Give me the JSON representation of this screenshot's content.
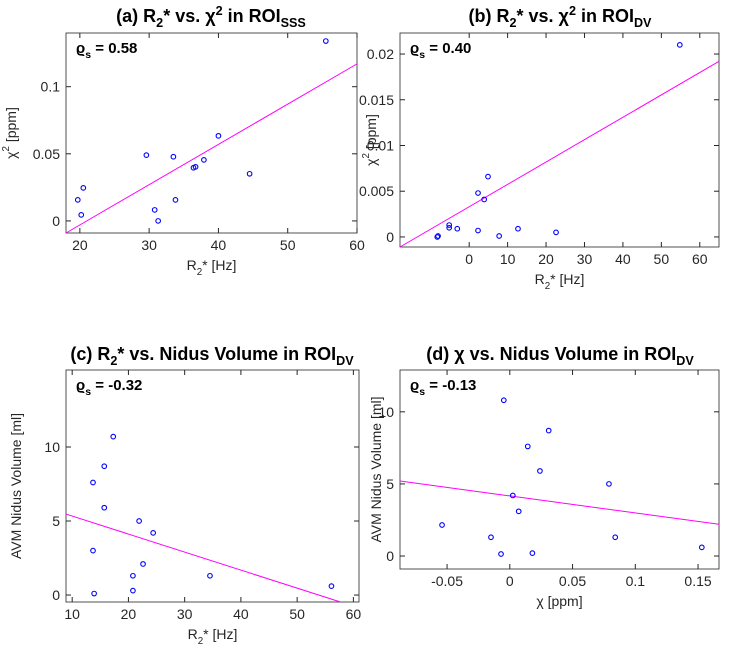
{
  "chart_data": [
    {
      "type": "scatter",
      "title": [
        {
          "text": "(a) R"
        },
        {
          "text": "2",
          "script": "sub"
        },
        {
          "text": "* vs. χ"
        },
        {
          "text": "2",
          "script": "sup"
        },
        {
          "text": " in ROI"
        },
        {
          "text": "SSS",
          "script": "sub"
        }
      ],
      "annotation": [
        {
          "text": "ϱ"
        },
        {
          "text": "s",
          "script": "sub"
        },
        {
          "text": " = 0.58"
        }
      ],
      "xlabel": [
        {
          "text": "R"
        },
        {
          "text": "2",
          "script": "sub"
        },
        {
          "text": "* [Hz]"
        }
      ],
      "ylabel": [
        {
          "text": "χ"
        },
        {
          "text": "2",
          "script": "sup"
        },
        {
          "text": " [ppm]"
        }
      ],
      "x": [
        19.7,
        20.5,
        20.2,
        29.6,
        30.8,
        31.3,
        33.5,
        33.8,
        36.4,
        36.7,
        37.9,
        40.0,
        44.5,
        55.5
      ],
      "values": [
        0.0157,
        0.0246,
        0.0045,
        0.049,
        0.0082,
        0,
        0.0478,
        0.0157,
        0.0396,
        0.0403,
        0.0455,
        0.0634,
        0.0351,
        0.134
      ],
      "color": "#0000ff",
      "fit": {
        "x": [
          18,
          60
        ],
        "y": [
          -0.009,
          0.117
        ],
        "color": "#ff00ff"
      },
      "xlim": [
        18,
        60
      ],
      "ylim": [
        -0.009,
        0.14
      ],
      "xticks": [
        20,
        30,
        40,
        50,
        60
      ],
      "yticks": [
        0,
        0.05,
        0.1
      ]
    },
    {
      "type": "scatter",
      "title": [
        {
          "text": "(b) R"
        },
        {
          "text": "2",
          "script": "sub"
        },
        {
          "text": "* vs. χ"
        },
        {
          "text": "2",
          "script": "sup"
        },
        {
          "text": " in ROI"
        },
        {
          "text": "DV",
          "script": "sub"
        }
      ],
      "annotation": [
        {
          "text": "ϱ"
        },
        {
          "text": "s",
          "script": "sub"
        },
        {
          "text": " = 0.40"
        }
      ],
      "xlabel": [
        {
          "text": "R"
        },
        {
          "text": "2",
          "script": "sub"
        },
        {
          "text": "* [Hz]"
        }
      ],
      "ylabel": [
        {
          "text": "χ"
        },
        {
          "text": "2",
          "script": "sup"
        },
        {
          "text": " [ppm]"
        }
      ],
      "x": [
        -8.3,
        -8.1,
        -5.2,
        -5.2,
        -3.1,
        2.3,
        3.9,
        4.9,
        2.3,
        7.8,
        12.7,
        22.6,
        54.8
      ],
      "values": [
        0,
        0.0001,
        0.0013,
        0.001,
        0.0009,
        0.0048,
        0.0041,
        0.0066,
        0.0007,
        0.0001,
        0.0009,
        0.0005,
        0.021
      ],
      "color": "#0000ff",
      "fit": {
        "x": [
          -18,
          65
        ],
        "y": [
          -0.0011,
          0.0192
        ],
        "color": "#ff00ff"
      },
      "xlim": [
        -18,
        65
      ],
      "ylim": [
        -0.0011,
        0.0223
      ],
      "xticks": [
        0,
        10,
        20,
        30,
        40,
        50,
        60
      ],
      "yticks": [
        0,
        0.005,
        0.01,
        0.015,
        0.02
      ]
    },
    {
      "type": "scatter",
      "title": [
        {
          "text": "(c) R"
        },
        {
          "text": "2",
          "script": "sub"
        },
        {
          "text": "* vs. Nidus Volume in ROI"
        },
        {
          "text": "DV",
          "script": "sub"
        }
      ],
      "annotation": [
        {
          "text": "ϱ"
        },
        {
          "text": "s",
          "script": "sub"
        },
        {
          "text": " = -0.32"
        }
      ],
      "xlabel": [
        {
          "text": "R"
        },
        {
          "text": "2",
          "script": "sub"
        },
        {
          "text": "* [Hz]"
        }
      ],
      "ylabel": "AVM Nidus Volume [ml]",
      "x": [
        17.3,
        15.7,
        13.7,
        15.7,
        21.9,
        24.4,
        13.7,
        22.6,
        20.8,
        34.5,
        56.1,
        20.8,
        13.9
      ],
      "values": [
        10.7,
        8.7,
        7.6,
        5.9,
        5.0,
        4.2,
        3.0,
        2.1,
        1.3,
        1.3,
        0.6,
        0.3,
        0.1
      ],
      "color": "#0000ff",
      "fit": {
        "x": [
          8.9,
          57.7
        ],
        "y": [
          5.47,
          -0.47
        ],
        "color": "#ff00ff"
      },
      "xlim": [
        8.9,
        61
      ],
      "ylim": [
        -0.47,
        15.2
      ],
      "xticks": [
        10,
        20,
        30,
        40,
        50,
        60
      ],
      "yticks": [
        0,
        5,
        10
      ]
    },
    {
      "type": "scatter",
      "title": [
        {
          "text": "(d) χ vs. Nidus Volume in ROI"
        },
        {
          "text": "DV",
          "script": "sub"
        }
      ],
      "annotation": [
        {
          "text": "ϱ"
        },
        {
          "text": "s",
          "script": "sub"
        },
        {
          "text": " = -0.13"
        }
      ],
      "xlabel": "χ [ppm]",
      "ylabel": "AVM Nidus Volume [ml]",
      "x": [
        -0.0048,
        0.031,
        0.0143,
        0.024,
        0.079,
        0.0024,
        0.0071,
        -0.054,
        -0.015,
        0.084,
        0.153,
        0.018,
        -0.007
      ],
      "values": [
        10.8,
        8.7,
        7.6,
        5.9,
        5.0,
        4.2,
        3.1,
        2.15,
        1.3,
        1.3,
        0.6,
        0.2,
        0.14
      ],
      "color": "#0000ff",
      "fit": {
        "x": [
          -0.0875,
          0.1667
        ],
        "y": [
          5.2,
          2.2
        ],
        "color": "#ff00ff"
      },
      "xlim": [
        -0.0875,
        0.1667
      ],
      "ylim": [
        -0.9,
        12.9
      ],
      "xticks": [
        -0.05,
        0,
        0.05,
        0.1,
        0.15
      ],
      "yticks": [
        0,
        5,
        10
      ]
    }
  ]
}
